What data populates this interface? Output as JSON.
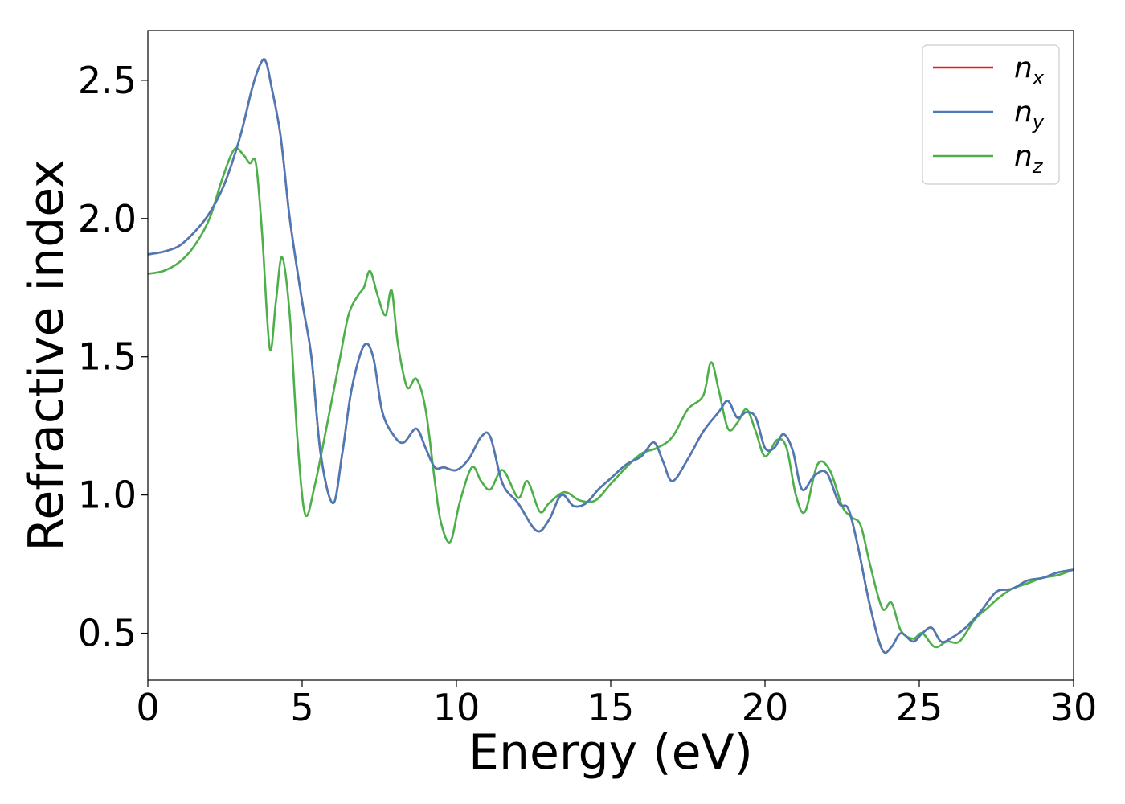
{
  "chart_data": {
    "type": "line",
    "title": "",
    "xlabel": "Energy (eV)",
    "ylabel": "Refractive index",
    "xlim": [
      0,
      30
    ],
    "ylim": [
      0.33,
      2.68
    ],
    "xticks": [
      0,
      5,
      10,
      15,
      20,
      25,
      30
    ],
    "xtick_labels": [
      "0",
      "5",
      "10",
      "15",
      "20",
      "25",
      "30"
    ],
    "yticks": [
      0.5,
      1.0,
      1.5,
      2.0,
      2.5
    ],
    "ytick_labels": [
      "0.5",
      "1.0",
      "1.5",
      "2.0",
      "2.5"
    ],
    "grid": false,
    "legend_position": "top-right",
    "series": [
      {
        "name": "n",
        "sub": "x",
        "color": "#e41a1c",
        "x": [
          0,
          0.5,
          1,
          1.5,
          2,
          2.5,
          3,
          3.4,
          3.7,
          3.85,
          4,
          4.3,
          4.6,
          5,
          5.3,
          5.6,
          6,
          6.3,
          6.6,
          7,
          7.3,
          7.6,
          8,
          8.3,
          8.7,
          9,
          9.3,
          9.6,
          10,
          10.4,
          10.8,
          11.1,
          11.5,
          12,
          12.6,
          13,
          13.4,
          13.8,
          14.2,
          14.6,
          15,
          15.5,
          16,
          16.4,
          16.7,
          17,
          17.5,
          18,
          18.5,
          18.8,
          19.1,
          19.4,
          19.7,
          20,
          20.3,
          20.6,
          20.9,
          21.2,
          21.6,
          22,
          22.4,
          22.7,
          23,
          23.4,
          23.8,
          24.1,
          24.4,
          24.8,
          25.1,
          25.4,
          25.7,
          26,
          26.5,
          27,
          27.5,
          28,
          28.5,
          29,
          29.5,
          30
        ],
        "values": [
          1.87,
          1.88,
          1.9,
          1.95,
          2.02,
          2.13,
          2.3,
          2.48,
          2.57,
          2.56,
          2.48,
          2.3,
          2.0,
          1.7,
          1.5,
          1.15,
          0.97,
          1.15,
          1.38,
          1.54,
          1.5,
          1.3,
          1.21,
          1.19,
          1.24,
          1.17,
          1.1,
          1.1,
          1.09,
          1.13,
          1.21,
          1.21,
          1.04,
          0.97,
          0.87,
          0.91,
          1.0,
          0.96,
          0.97,
          1.02,
          1.06,
          1.11,
          1.14,
          1.19,
          1.12,
          1.05,
          1.13,
          1.23,
          1.3,
          1.34,
          1.28,
          1.3,
          1.28,
          1.17,
          1.17,
          1.22,
          1.16,
          1.02,
          1.07,
          1.08,
          0.97,
          0.95,
          0.82,
          0.6,
          0.44,
          0.45,
          0.5,
          0.47,
          0.5,
          0.52,
          0.47,
          0.48,
          0.52,
          0.58,
          0.65,
          0.66,
          0.69,
          0.7,
          0.72,
          0.73
        ]
      },
      {
        "name": "n",
        "sub": "y",
        "color": "#4a7bb7",
        "x": [
          0,
          0.5,
          1,
          1.5,
          2,
          2.5,
          3,
          3.4,
          3.7,
          3.85,
          4,
          4.3,
          4.6,
          5,
          5.3,
          5.6,
          6,
          6.3,
          6.6,
          7,
          7.3,
          7.6,
          8,
          8.3,
          8.7,
          9,
          9.3,
          9.6,
          10,
          10.4,
          10.8,
          11.1,
          11.5,
          12,
          12.6,
          13,
          13.4,
          13.8,
          14.2,
          14.6,
          15,
          15.5,
          16,
          16.4,
          16.7,
          17,
          17.5,
          18,
          18.5,
          18.8,
          19.1,
          19.4,
          19.7,
          20,
          20.3,
          20.6,
          20.9,
          21.2,
          21.6,
          22,
          22.4,
          22.7,
          23,
          23.4,
          23.8,
          24.1,
          24.4,
          24.8,
          25.1,
          25.4,
          25.7,
          26,
          26.5,
          27,
          27.5,
          28,
          28.5,
          29,
          29.5,
          30
        ],
        "values": [
          1.87,
          1.88,
          1.9,
          1.95,
          2.02,
          2.13,
          2.3,
          2.48,
          2.57,
          2.56,
          2.48,
          2.3,
          2.0,
          1.7,
          1.5,
          1.15,
          0.97,
          1.15,
          1.38,
          1.54,
          1.5,
          1.3,
          1.21,
          1.19,
          1.24,
          1.17,
          1.1,
          1.1,
          1.09,
          1.13,
          1.21,
          1.21,
          1.04,
          0.97,
          0.87,
          0.91,
          1.0,
          0.96,
          0.97,
          1.02,
          1.06,
          1.11,
          1.14,
          1.19,
          1.12,
          1.05,
          1.13,
          1.23,
          1.3,
          1.34,
          1.28,
          1.3,
          1.28,
          1.17,
          1.17,
          1.22,
          1.16,
          1.02,
          1.07,
          1.08,
          0.97,
          0.95,
          0.82,
          0.6,
          0.44,
          0.45,
          0.5,
          0.47,
          0.5,
          0.52,
          0.47,
          0.48,
          0.52,
          0.58,
          0.65,
          0.66,
          0.69,
          0.7,
          0.72,
          0.73
        ]
      },
      {
        "name": "n",
        "sub": "z",
        "color": "#4daf4a",
        "x": [
          0,
          0.5,
          1,
          1.5,
          2,
          2.4,
          2.8,
          3.1,
          3.3,
          3.5,
          3.7,
          3.95,
          4.15,
          4.35,
          4.6,
          4.85,
          5.1,
          5.4,
          5.8,
          6.2,
          6.5,
          6.8,
          7.0,
          7.2,
          7.45,
          7.7,
          7.9,
          8.1,
          8.4,
          8.7,
          9.0,
          9.3,
          9.5,
          9.8,
          10.1,
          10.5,
          10.8,
          11.1,
          11.5,
          12.0,
          12.3,
          12.7,
          13.0,
          13.5,
          14.0,
          14.5,
          15.0,
          15.5,
          16.0,
          16.5,
          17.0,
          17.5,
          18.0,
          18.25,
          18.5,
          18.8,
          19.1,
          19.4,
          19.7,
          20.0,
          20.4,
          20.7,
          21.0,
          21.3,
          21.7,
          22.1,
          22.5,
          22.8,
          23.1,
          23.4,
          23.8,
          24.1,
          24.4,
          24.8,
          25.1,
          25.5,
          25.9,
          26.3,
          26.8,
          27.2,
          27.6,
          28.0,
          28.5,
          29.0,
          29.5,
          30.0
        ],
        "values": [
          1.8,
          1.81,
          1.84,
          1.9,
          2.0,
          2.14,
          2.25,
          2.23,
          2.2,
          2.2,
          1.95,
          1.53,
          1.7,
          1.86,
          1.65,
          1.2,
          0.93,
          1.03,
          1.25,
          1.48,
          1.65,
          1.72,
          1.75,
          1.81,
          1.72,
          1.65,
          1.74,
          1.55,
          1.39,
          1.42,
          1.31,
          1.05,
          0.9,
          0.83,
          0.97,
          1.1,
          1.05,
          1.02,
          1.09,
          0.99,
          1.05,
          0.94,
          0.97,
          1.01,
          0.98,
          0.98,
          1.04,
          1.1,
          1.15,
          1.17,
          1.21,
          1.31,
          1.36,
          1.48,
          1.38,
          1.24,
          1.26,
          1.31,
          1.23,
          1.14,
          1.2,
          1.17,
          1.0,
          0.94,
          1.11,
          1.09,
          0.96,
          0.92,
          0.89,
          0.75,
          0.59,
          0.61,
          0.51,
          0.48,
          0.5,
          0.45,
          0.47,
          0.47,
          0.55,
          0.59,
          0.63,
          0.66,
          0.68,
          0.7,
          0.71,
          0.73
        ]
      }
    ]
  }
}
